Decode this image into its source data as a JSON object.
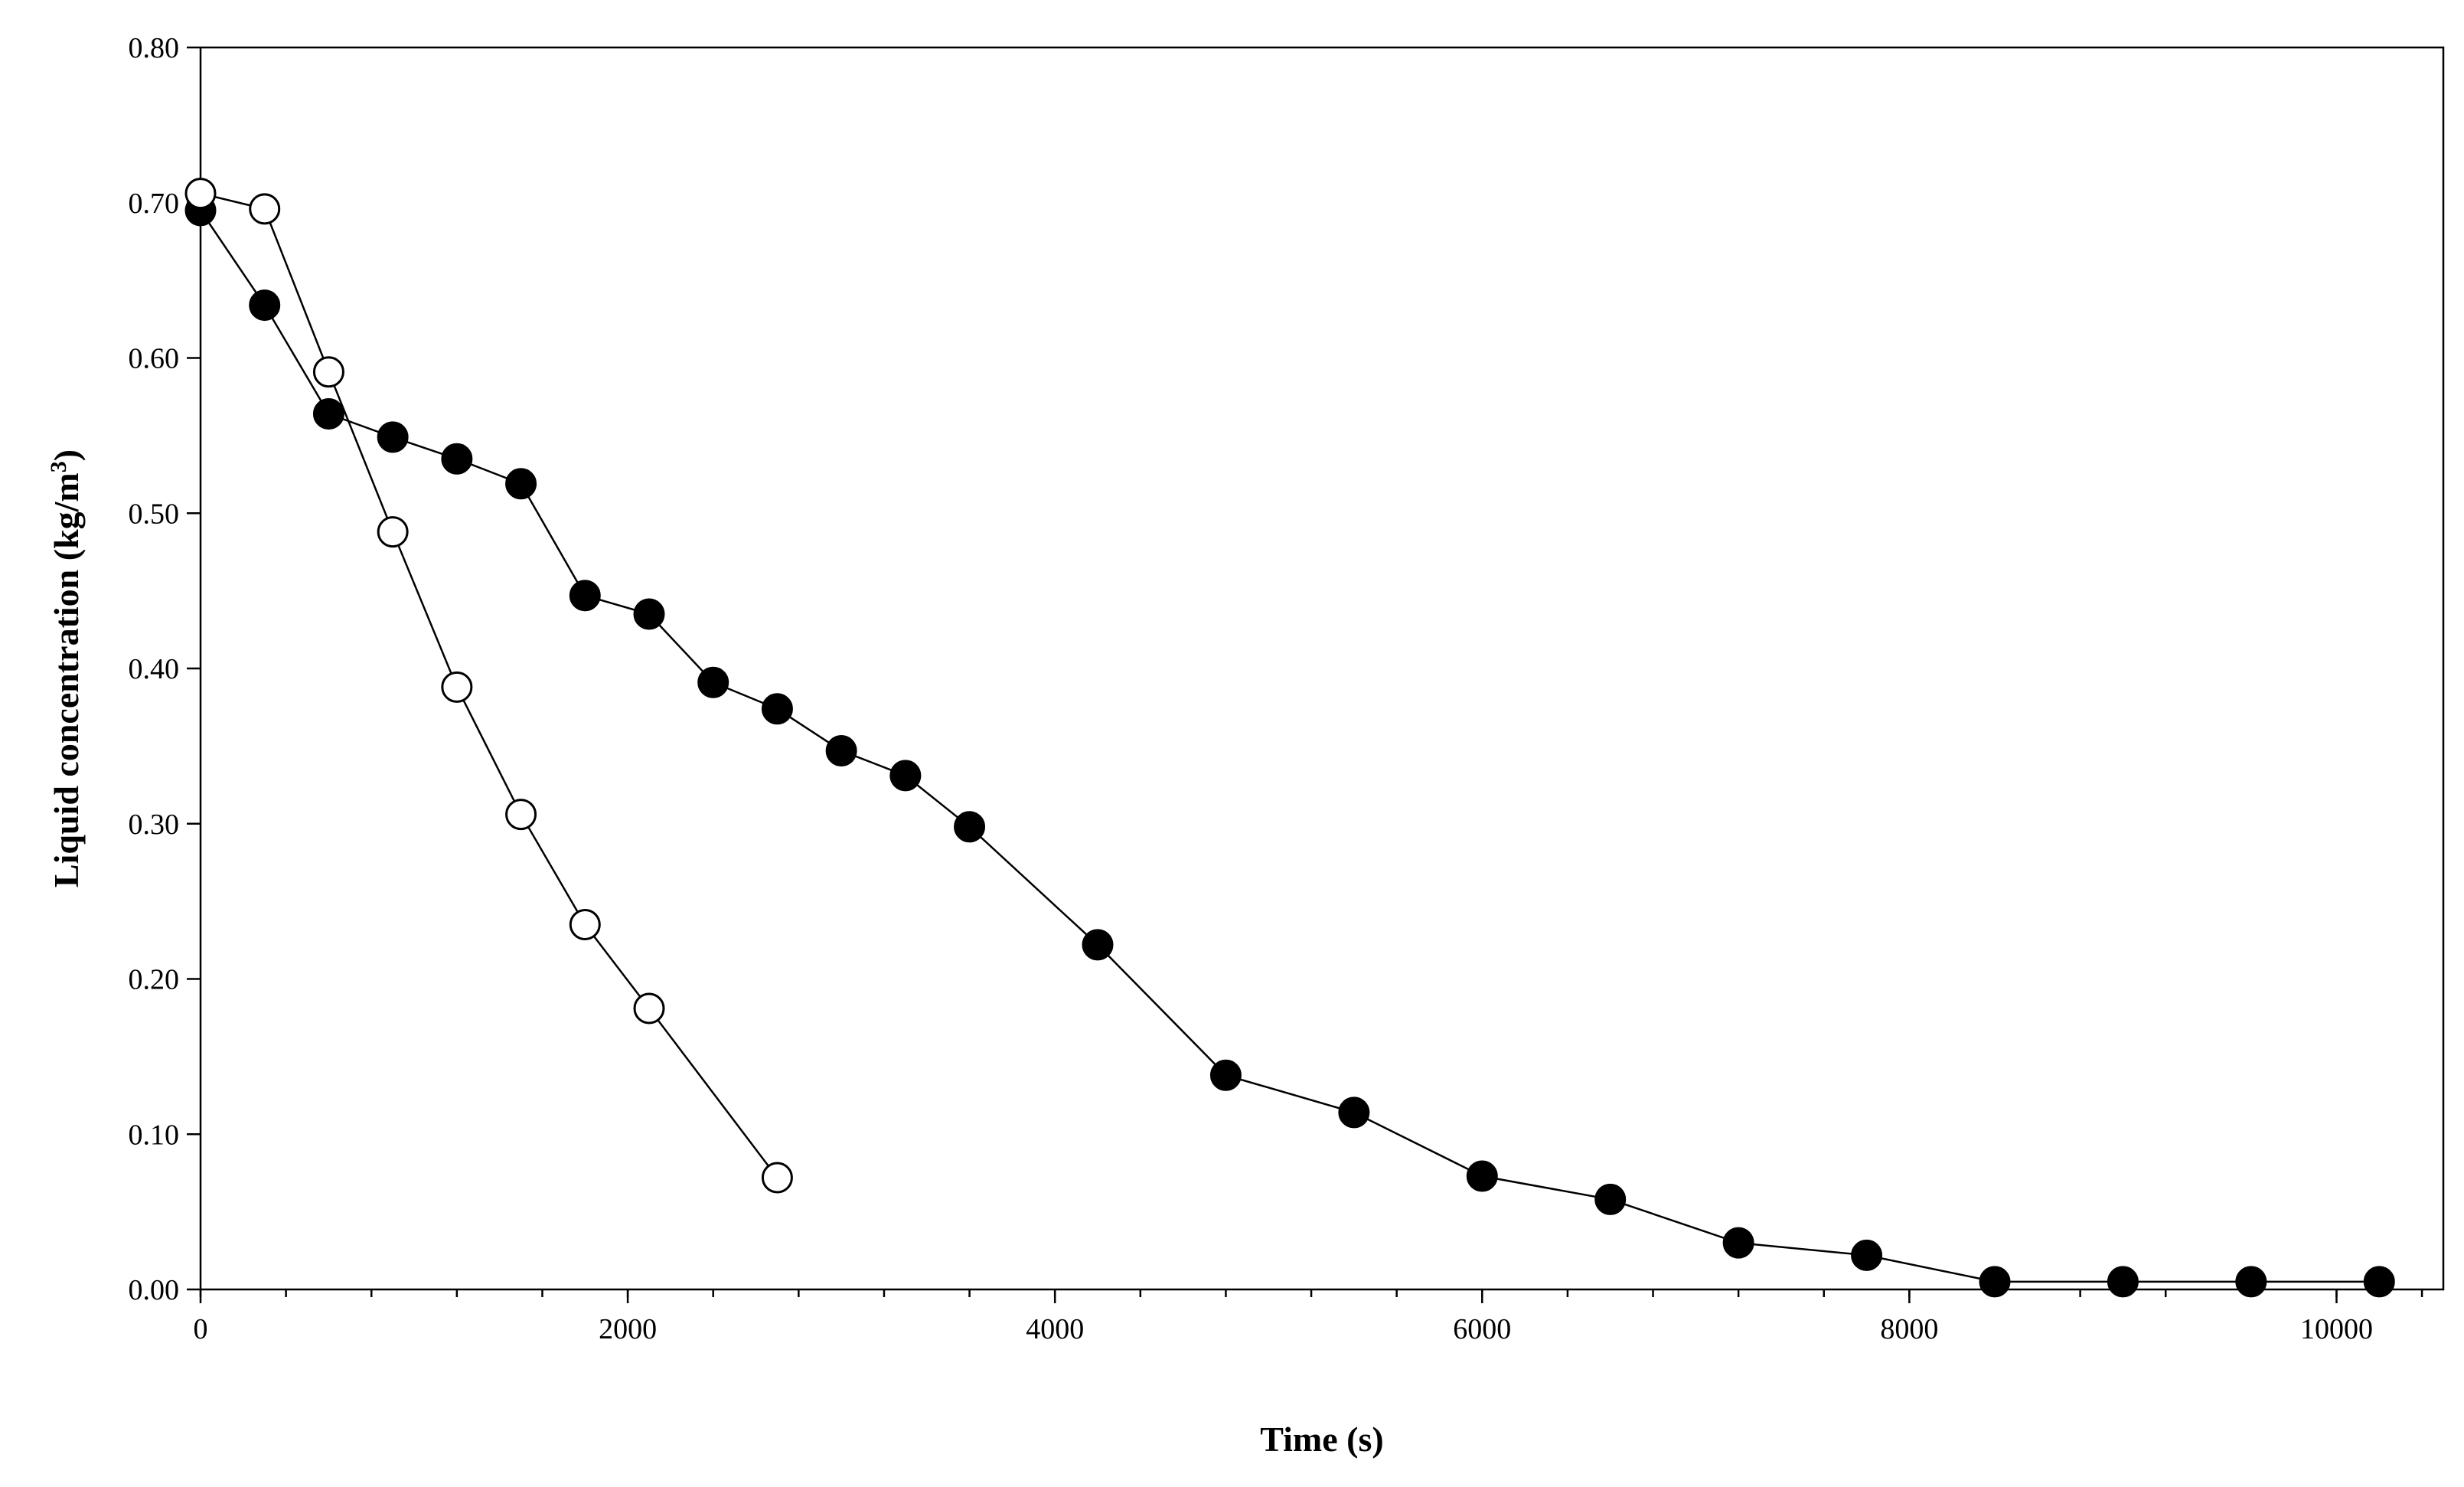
{
  "chart_data": {
    "type": "scatter",
    "title": "",
    "xlabel": "Time (s)",
    "ylabel_main": "Liquid concentration (kg/m",
    "ylabel_sup": "3",
    "ylabel_close": ")",
    "xlim": [
      0,
      10500
    ],
    "ylim": [
      0,
      0.8
    ],
    "grid": false,
    "x_ticks": [
      0,
      2000,
      4000,
      6000,
      8000,
      10000
    ],
    "x_tick_labels": [
      "0",
      "2000",
      "4000",
      "6000",
      "8000",
      "10000"
    ],
    "x_minor_step": 400,
    "y_ticks": [
      0,
      0.1,
      0.2,
      0.3,
      0.4,
      0.5,
      0.6,
      0.7,
      0.8
    ],
    "y_tick_labels": [
      "0.00",
      "0.10",
      "0.20",
      "0.30",
      "0.40",
      "0.50",
      "0.60",
      "0.70",
      "0.80"
    ],
    "series": [
      {
        "name": "filled",
        "marker": "filled-circle",
        "color": "#000000",
        "x": [
          0,
          300,
          600,
          900,
          1200,
          1500,
          1800,
          2100,
          2400,
          2700,
          3000,
          3300,
          3600,
          4200,
          4800,
          5400,
          6000,
          6600,
          7200,
          7800,
          8400,
          9000,
          9600,
          10200
        ],
        "y": [
          0.695,
          0.634,
          0.564,
          0.549,
          0.535,
          0.519,
          0.447,
          0.435,
          0.391,
          0.374,
          0.347,
          0.331,
          0.298,
          0.222,
          0.138,
          0.114,
          0.073,
          0.058,
          0.03,
          0.022,
          0.005,
          0.005,
          0.005,
          0.005
        ]
      },
      {
        "name": "open",
        "marker": "open-circle",
        "color": "#000000",
        "x": [
          0,
          300,
          600,
          900,
          1200,
          1500,
          1800,
          2100,
          2700
        ],
        "y": [
          0.706,
          0.696,
          0.591,
          0.488,
          0.388,
          0.306,
          0.235,
          0.181,
          0.072
        ]
      }
    ]
  }
}
